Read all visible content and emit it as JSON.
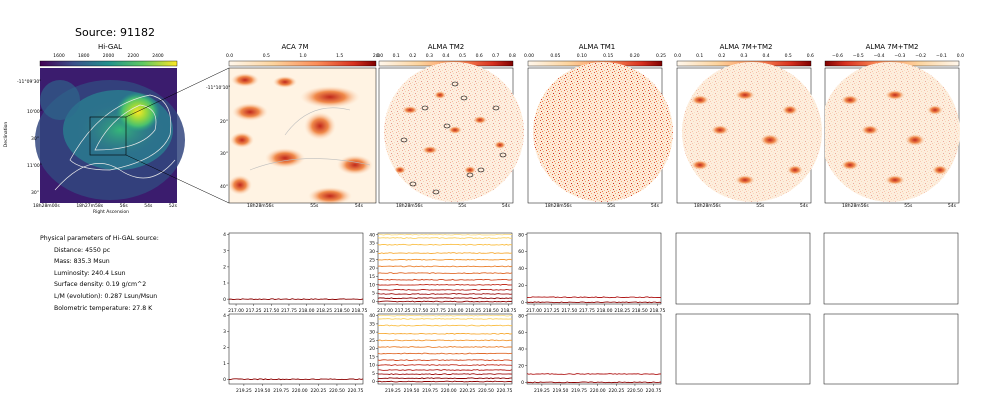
{
  "header": {
    "title": "Source: 91182"
  },
  "panels": [
    {
      "title": "Hi-GAL",
      "cbar_ticks": [
        "1600",
        "1800",
        "2000",
        "2200",
        "2400"
      ],
      "ylabel": "Declination",
      "xlabel": "Right Ascension",
      "yticks": [
        "-11°09'30\"",
        "10'00\"",
        "30\"",
        "11'00\"",
        "30\""
      ],
      "xticks": [
        "18h28m00s",
        "18h27m58s",
        "56s",
        "54s",
        "52s"
      ]
    },
    {
      "title": "ACA 7M",
      "cbar_ticks": [
        "0.0",
        "0.5",
        "1.0",
        "1.5",
        "2.0"
      ],
      "yticks": [
        "-11°10'10\"",
        "20\"",
        "30\"",
        "40\""
      ],
      "xticks": [
        "18h28m56s",
        "55s",
        "54s"
      ]
    },
    {
      "title": "ALMA TM2",
      "cbar_ticks": [
        "0.0",
        "0.1",
        "0.2",
        "0.3",
        "0.4",
        "0.5",
        "0.6",
        "0.7",
        "0.8"
      ],
      "xticks": [
        "18h28m56s",
        "55s",
        "54s"
      ]
    },
    {
      "title": "ALMA TM1",
      "cbar_ticks": [
        "0.00",
        "0.05",
        "0.10",
        "0.15",
        "0.20",
        "0.25"
      ],
      "xticks": [
        "18h28m56s",
        "55s",
        "54s"
      ]
    },
    {
      "title": "ALMA 7M+TM2",
      "cbar_ticks": [
        "0.0",
        "0.1",
        "0.2",
        "0.3",
        "0.4",
        "0.5",
        "0.6"
      ],
      "xticks": [
        "18h28m56s",
        "55s",
        "54s"
      ]
    },
    {
      "title": "ALMA 7M+TM2",
      "cbar_ticks": [
        "−0.6",
        "−0.5",
        "−0.4",
        "−0.3",
        "−0.2",
        "−0.1",
        "0.0"
      ],
      "xticks": [
        "18h28m56s",
        "55s",
        "54s"
      ]
    }
  ],
  "params": {
    "heading": "Physical parameters of Hi-GAL source:",
    "lines": [
      "Distance: 4550 pc",
      "Mass: 835.3 Msun",
      "Luminosity: 240.4 Lsun",
      "Surface density: 0.19 g/cm^2",
      "L/M (evolution): 0.287 Lsun/Msun",
      "Bolometric temperature: 27.8 K"
    ]
  },
  "chart_data": [
    {
      "type": "line",
      "panel": "ACA 7M spectrum (row 1)",
      "x_range": [
        216.9,
        218.8
      ],
      "y_range": [
        -0.3,
        4.1
      ],
      "xticks": [
        "217.00",
        "217.25",
        "217.50",
        "217.75",
        "218.00",
        "218.25",
        "218.50",
        "218.75"
      ],
      "yticks": [
        "0",
        "1",
        "2",
        "3",
        "4"
      ],
      "series": [
        {
          "level": 0,
          "color": "#8b0000"
        }
      ]
    },
    {
      "type": "line",
      "panel": "ALMA TM2 spectra (row 1)",
      "x_range": [
        216.9,
        218.8
      ],
      "y_range": [
        -1.5,
        41
      ],
      "xticks": [
        "217.00",
        "217.25",
        "217.50",
        "217.75",
        "218.00",
        "218.25",
        "218.50",
        "218.75"
      ],
      "yticks": [
        "0",
        "5",
        "10",
        "15",
        "20",
        "25",
        "30",
        "35",
        "40"
      ],
      "series": [
        {
          "level": 0,
          "color": "#8b0000"
        },
        {
          "level": 2,
          "color": "#8b0000"
        },
        {
          "level": 4.5,
          "color": "#a01212"
        },
        {
          "level": 7,
          "color": "#b3201a"
        },
        {
          "level": 10,
          "color": "#c23020"
        },
        {
          "level": 13,
          "color": "#d24a22"
        },
        {
          "level": 17,
          "color": "#e06a2a"
        },
        {
          "level": 21,
          "color": "#ea8130"
        },
        {
          "level": 25,
          "color": "#f39a36"
        },
        {
          "level": 29,
          "color": "#f7ad3c"
        },
        {
          "level": 34,
          "color": "#fac04a"
        },
        {
          "level": 38,
          "color": "#fbd262"
        },
        {
          "level": 40,
          "color": "#fde08a"
        }
      ]
    },
    {
      "type": "line",
      "panel": "ALMA TM1 spectra (row 1)",
      "x_range": [
        216.9,
        218.8
      ],
      "y_range": [
        -2,
        82
      ],
      "xticks": [
        "217.00",
        "217.25",
        "217.50",
        "217.75",
        "218.00",
        "218.25",
        "218.50",
        "218.75"
      ],
      "yticks": [
        "0",
        "20",
        "40",
        "60",
        "80"
      ],
      "series": [
        {
          "level": 0,
          "color": "#8b0000"
        },
        {
          "level": 6,
          "color": "#b01818"
        }
      ]
    },
    {
      "type": "line",
      "panel": "ACA 7M spectrum (row 2)",
      "x_range": [
        219.05,
        220.85
      ],
      "y_range": [
        -0.3,
        4.1
      ],
      "xticks": [
        "219.25",
        "219.50",
        "219.75",
        "220.00",
        "220.25",
        "220.50",
        "220.75"
      ],
      "yticks": [
        "0",
        "1",
        "2",
        "3",
        "4"
      ],
      "series": [
        {
          "level": 0,
          "color": "#8b0000"
        }
      ]
    },
    {
      "type": "line",
      "panel": "ALMA TM2 spectra (row 2)",
      "x_range": [
        219.05,
        220.85
      ],
      "y_range": [
        -1.5,
        41
      ],
      "xticks": [
        "219.25",
        "219.50",
        "219.75",
        "220.00",
        "220.25",
        "220.50",
        "220.75"
      ],
      "yticks": [
        "0",
        "5",
        "10",
        "15",
        "20",
        "25",
        "30",
        "35",
        "40"
      ],
      "series": [
        {
          "level": 0,
          "color": "#8b0000"
        },
        {
          "level": 2,
          "color": "#8b0000"
        },
        {
          "level": 4.5,
          "color": "#a01212"
        },
        {
          "level": 7,
          "color": "#b3201a"
        },
        {
          "level": 10,
          "color": "#c23020"
        },
        {
          "level": 13,
          "color": "#d24a22"
        },
        {
          "level": 17,
          "color": "#e06a2a"
        },
        {
          "level": 21,
          "color": "#ea8130"
        },
        {
          "level": 25,
          "color": "#f39a36"
        },
        {
          "level": 29,
          "color": "#f7ad3c"
        },
        {
          "level": 34,
          "color": "#fac04a"
        },
        {
          "level": 38,
          "color": "#fbd262"
        },
        {
          "level": 40,
          "color": "#fde08a"
        }
      ]
    },
    {
      "type": "line",
      "panel": "ALMA TM1 spectra (row 2)",
      "x_range": [
        219.05,
        220.85
      ],
      "y_range": [
        -2,
        82
      ],
      "xticks": [
        "219.25",
        "219.50",
        "219.75",
        "220.00",
        "220.25",
        "220.50",
        "220.75"
      ],
      "yticks": [
        "0",
        "20",
        "40",
        "60",
        "80"
      ],
      "series": [
        {
          "level": 0,
          "color": "#8b0000"
        },
        {
          "level": 10,
          "color": "#b01818"
        }
      ]
    }
  ]
}
